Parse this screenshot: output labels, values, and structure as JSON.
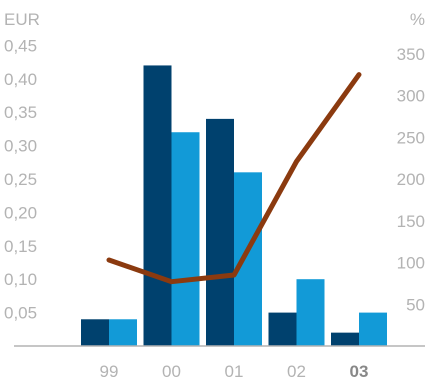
{
  "chart_data": {
    "type": "bar",
    "categories": [
      "99",
      "00",
      "01",
      "02",
      "03"
    ],
    "highlighted_category": "03",
    "left_axis": {
      "unit": "EUR",
      "ylim": [
        0,
        0.5
      ],
      "ticks": [
        "0,05",
        "0,10",
        "0,15",
        "0,20",
        "0,25",
        "0,30",
        "0,35",
        "0,40",
        "0,45"
      ],
      "tick_values": [
        0.05,
        0.1,
        0.15,
        0.2,
        0.25,
        0.3,
        0.35,
        0.4,
        0.45
      ]
    },
    "right_axis": {
      "unit": "%",
      "ylim": [
        0,
        400
      ],
      "ticks": [
        "50",
        "100",
        "150",
        "200",
        "250",
        "300",
        "350"
      ],
      "tick_values": [
        50,
        100,
        150,
        200,
        250,
        300,
        350
      ]
    },
    "series": [
      {
        "type": "bar",
        "axis": "left",
        "color": "#00416e",
        "values": [
          0.04,
          0.42,
          0.34,
          0.05,
          0.02
        ]
      },
      {
        "type": "bar",
        "axis": "left",
        "color": "#129ad7",
        "values": [
          0.04,
          0.32,
          0.26,
          0.1,
          0.05
        ]
      },
      {
        "type": "line",
        "axis": "right",
        "color": "#8b3a0f",
        "values": [
          103,
          77,
          85,
          221,
          325
        ]
      }
    ],
    "grid": false
  }
}
